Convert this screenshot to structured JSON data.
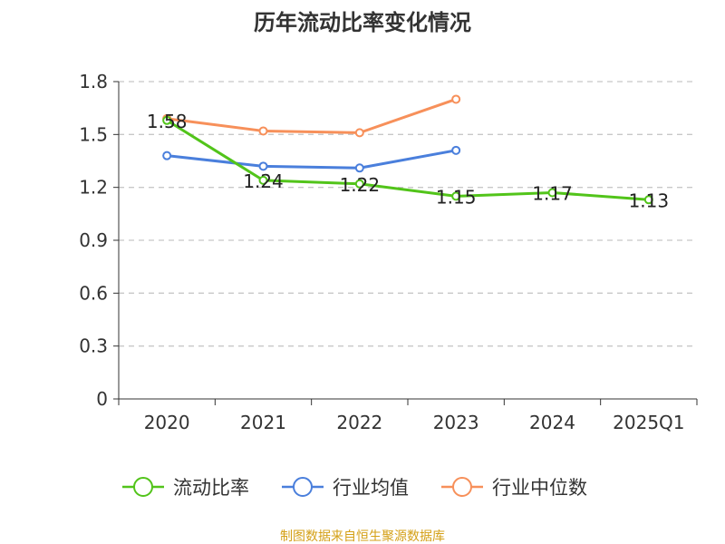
{
  "chart_data": {
    "type": "line",
    "title": "历年流动比率变化情况",
    "categories": [
      "2020",
      "2021",
      "2022",
      "2023",
      "2024",
      "2025Q1"
    ],
    "y_ticks": [
      "0",
      "0.3",
      "0.6",
      "0.9",
      "1.2",
      "1.5",
      "1.8"
    ],
    "ylim": [
      0,
      1.8
    ],
    "grid": "horizontal dashed",
    "legend_position": "bottom",
    "series": [
      {
        "name": "流动比率",
        "color": "#52c41a",
        "values": [
          1.58,
          1.24,
          1.22,
          1.15,
          1.17,
          1.13
        ],
        "labels": [
          "1.58",
          "1.24",
          "1.22",
          "1.15",
          "1.17",
          "1.13"
        ]
      },
      {
        "name": "行业均值",
        "color": "#4a7fdc",
        "values": [
          1.38,
          1.32,
          1.31,
          1.41,
          null,
          null
        ]
      },
      {
        "name": "行业中位数",
        "color": "#f7905a",
        "values": [
          1.59,
          1.52,
          1.51,
          1.7,
          null,
          null
        ]
      }
    ],
    "source": "制图数据来自恒生聚源数据库"
  }
}
